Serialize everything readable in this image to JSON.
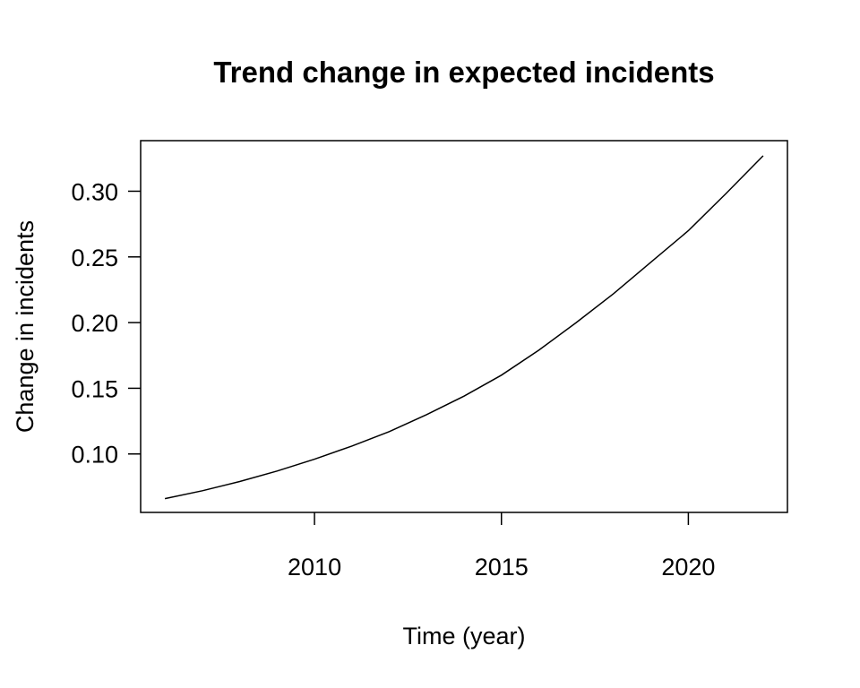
{
  "chart_data": {
    "type": "line",
    "title": "Trend change in expected incidents",
    "xlabel": "Time (year)",
    "ylabel": "Change in incidents",
    "xlim": [
      2005.35,
      2022.65
    ],
    "ylim": [
      0.0555,
      0.3385
    ],
    "x_ticks": [
      2010,
      2015,
      2020
    ],
    "x_tick_labels": [
      "2010",
      "2015",
      "2020"
    ],
    "y_ticks": [
      0.1,
      0.15,
      0.2,
      0.25,
      0.3
    ],
    "y_tick_labels": [
      "0.10",
      "0.15",
      "0.20",
      "0.25",
      "0.30"
    ],
    "grid": false,
    "series": [
      {
        "color": "#000000",
        "x": [
          2006,
          2007,
          2008,
          2009,
          2010,
          2011,
          2012,
          2013,
          2014,
          2015,
          2016,
          2017,
          2018,
          2019,
          2020,
          2021,
          2022
        ],
        "y": [
          0.066,
          0.072,
          0.079,
          0.087,
          0.096,
          0.106,
          0.117,
          0.13,
          0.144,
          0.16,
          0.179,
          0.2,
          0.222,
          0.246,
          0.27,
          0.298,
          0.327
        ]
      }
    ]
  }
}
